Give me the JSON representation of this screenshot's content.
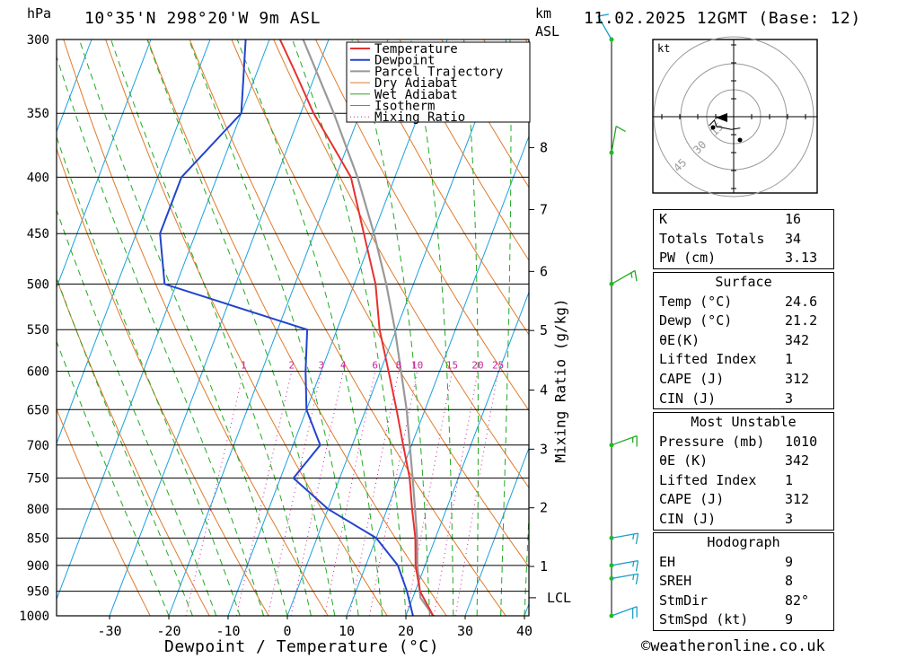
{
  "header": {
    "location": "10°35'N 298°20'W 9m ASL",
    "datetime": "11.02.2025 12GMT (Base: 12)",
    "pressure_unit": "hPa",
    "height_unit_km": "km",
    "height_unit_asl": "ASL"
  },
  "chart_data": {
    "type": "line",
    "title": "10°35'N 298°20'W 9m ASL",
    "xlabel": "Dewpoint / Temperature (°C)",
    "ylabel": "hPa",
    "y2label": "Mixing Ratio (g/kg)",
    "xlim": [
      -40,
      40
    ],
    "ylim": [
      1000,
      300
    ],
    "y_scale": "log",
    "skew": "skew-T (isotherms slant to the right)",
    "legend_position": "top-right",
    "x_ticks": [
      "-30",
      "-20",
      "-10",
      "0",
      "10",
      "20",
      "30",
      "40"
    ],
    "pressure_levels": [
      300,
      350,
      400,
      450,
      500,
      550,
      600,
      650,
      700,
      750,
      800,
      850,
      900,
      950,
      1000
    ],
    "height_km_labels": [
      {
        "km": "1",
        "p": 902
      },
      {
        "km": "2",
        "p": 798
      },
      {
        "km": "3",
        "p": 706
      },
      {
        "km": "4",
        "p": 624
      },
      {
        "km": "5",
        "p": 551
      },
      {
        "km": "6",
        "p": 487
      },
      {
        "km": "7",
        "p": 428
      },
      {
        "km": "8",
        "p": 376
      }
    ],
    "lcl": {
      "label": "LCL",
      "p": 963
    },
    "mixing_ratio_labels": [
      "1",
      "2",
      "3",
      "4",
      "6",
      "8",
      "10",
      "15",
      "20",
      "25"
    ],
    "legend": [
      "Temperature",
      "Dewpoint",
      "Parcel Trajectory",
      "Dry Adiabat",
      "Wet Adiabat",
      "Isotherm",
      "Mixing Ratio"
    ],
    "colors": {
      "temperature": "#e83030",
      "dewpoint": "#2244cc",
      "parcel": "#999999",
      "dry_adiabat": "#e07a2a",
      "wet_adiabat": "#22aa22",
      "isotherm": "#1aa0e0",
      "mixing_ratio": "#cc2299"
    },
    "series": [
      {
        "name": "Temperature",
        "points": [
          {
            "p": 1000,
            "t": 24.6
          },
          {
            "p": 950,
            "t": 20.8
          },
          {
            "p": 900,
            "t": 18.4
          },
          {
            "p": 850,
            "t": 16.6
          },
          {
            "p": 800,
            "t": 14.2
          },
          {
            "p": 750,
            "t": 11.8
          },
          {
            "p": 700,
            "t": 8.6
          },
          {
            "p": 650,
            "t": 5.2
          },
          {
            "p": 600,
            "t": 1.4
          },
          {
            "p": 550,
            "t": -2.8
          },
          {
            "p": 500,
            "t": -6.4
          },
          {
            "p": 450,
            "t": -11.6
          },
          {
            "p": 400,
            "t": -17.4
          },
          {
            "p": 375,
            "t": -22.4
          },
          {
            "p": 350,
            "t": -27.8
          },
          {
            "p": 320,
            "t": -33.8
          },
          {
            "p": 300,
            "t": -38.2
          }
        ]
      },
      {
        "name": "Dewpoint",
        "points": [
          {
            "p": 1000,
            "t": 21.2
          },
          {
            "p": 950,
            "t": 18.6
          },
          {
            "p": 900,
            "t": 15.4
          },
          {
            "p": 850,
            "t": 10.0
          },
          {
            "p": 800,
            "t": 0.0
          },
          {
            "p": 750,
            "t": -7.8
          },
          {
            "p": 700,
            "t": -5.4
          },
          {
            "p": 650,
            "t": -10.0
          },
          {
            "p": 600,
            "t": -12.6
          },
          {
            "p": 550,
            "t": -15.0
          },
          {
            "p": 500,
            "t": -42.0
          },
          {
            "p": 450,
            "t": -46.0
          },
          {
            "p": 400,
            "t": -46.0
          },
          {
            "p": 350,
            "t": -40.0
          },
          {
            "p": 300,
            "t": -44.0
          }
        ]
      },
      {
        "name": "Parcel Trajectory",
        "points": [
          {
            "p": 1000,
            "t": 24.6
          },
          {
            "p": 963,
            "t": 21.3
          },
          {
            "p": 900,
            "t": 18.7
          },
          {
            "p": 850,
            "t": 16.9
          },
          {
            "p": 800,
            "t": 14.7
          },
          {
            "p": 750,
            "t": 12.3
          },
          {
            "p": 700,
            "t": 9.7
          },
          {
            "p": 650,
            "t": 6.9
          },
          {
            "p": 600,
            "t": 3.5
          },
          {
            "p": 550,
            "t": -0.2
          },
          {
            "p": 500,
            "t": -4.6
          },
          {
            "p": 450,
            "t": -9.9
          },
          {
            "p": 400,
            "t": -16.3
          },
          {
            "p": 350,
            "t": -24.4
          },
          {
            "p": 300,
            "t": -34.3
          }
        ]
      }
    ],
    "winds": [
      {
        "p": 300,
        "dir": 330,
        "spd": 10
      },
      {
        "p": 380,
        "dir": 10,
        "spd": 10
      },
      {
        "p": 500,
        "dir": 60,
        "spd": 15
      },
      {
        "p": 700,
        "dir": 70,
        "spd": 15
      },
      {
        "p": 850,
        "dir": 80,
        "spd": 15
      },
      {
        "p": 900,
        "dir": 80,
        "spd": 15
      },
      {
        "p": 925,
        "dir": 80,
        "spd": 15
      },
      {
        "p": 1000,
        "dir": 70,
        "spd": 20
      }
    ]
  },
  "hodograph": {
    "unit_label": "kt",
    "ring_labels": [
      "15",
      "30",
      "45"
    ]
  },
  "indices": {
    "general": [
      {
        "label": "K",
        "value": "16"
      },
      {
        "label": "Totals Totals",
        "value": "34"
      },
      {
        "label": "PW (cm)",
        "value": "3.13"
      }
    ],
    "surface_title": "Surface",
    "surface": [
      {
        "label": "Temp (°C)",
        "value": "24.6"
      },
      {
        "label": "Dewp (°C)",
        "value": "21.2"
      },
      {
        "label": "θE(K)",
        "value": "342"
      },
      {
        "label": "Lifted Index",
        "value": "1"
      },
      {
        "label": "CAPE (J)",
        "value": "312"
      },
      {
        "label": "CIN (J)",
        "value": "3"
      }
    ],
    "unstable_title": "Most Unstable",
    "unstable": [
      {
        "label": "Pressure (mb)",
        "value": "1010"
      },
      {
        "label": "θE (K)",
        "value": "342"
      },
      {
        "label": "Lifted Index",
        "value": "1"
      },
      {
        "label": "CAPE (J)",
        "value": "312"
      },
      {
        "label": "CIN (J)",
        "value": "3"
      }
    ],
    "hodo_title": "Hodograph",
    "hodo": [
      {
        "label": "EH",
        "value": "9"
      },
      {
        "label": "SREH",
        "value": "8"
      },
      {
        "label": "StmDir",
        "value": "82°"
      },
      {
        "label": "StmSpd (kt)",
        "value": "9"
      }
    ]
  },
  "credit": "©weatheronline.co.uk"
}
